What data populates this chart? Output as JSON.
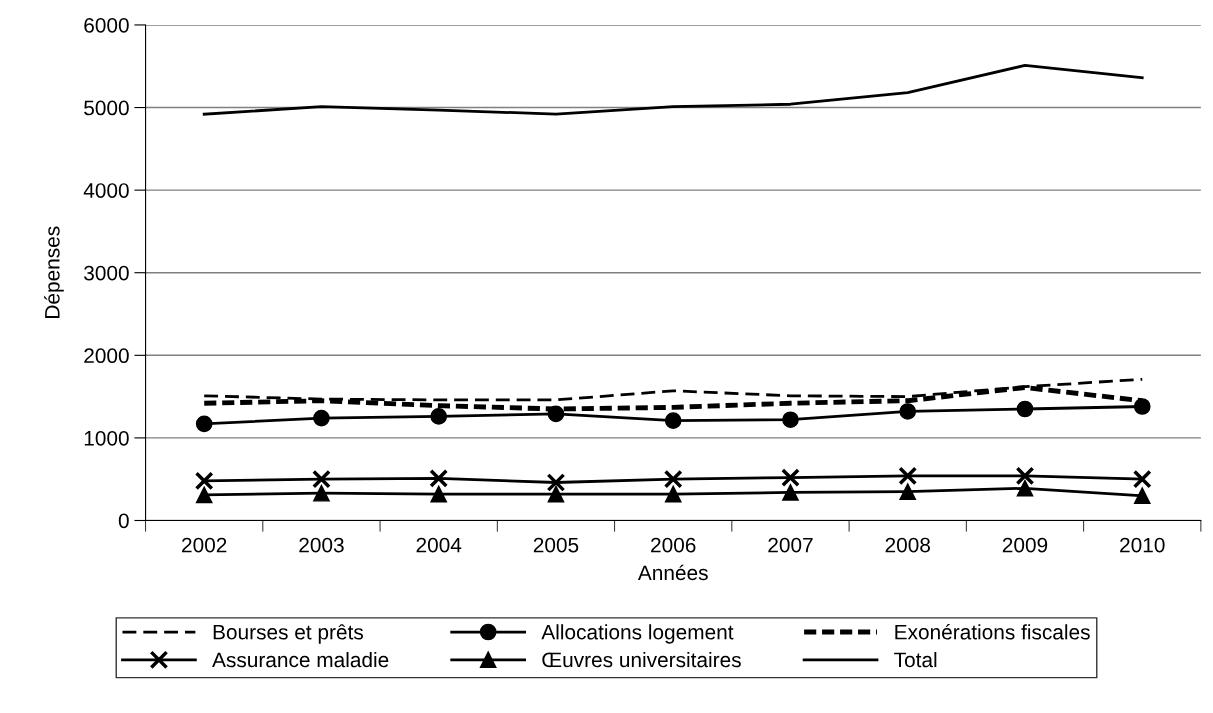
{
  "chart_data": {
    "type": "line",
    "xlabel": "Années",
    "ylabel": "Dépenses",
    "categories": [
      "2002",
      "2003",
      "2004",
      "2005",
      "2006",
      "2007",
      "2008",
      "2009",
      "2010"
    ],
    "ylim": [
      0,
      6000
    ],
    "yticks": [
      0,
      1000,
      2000,
      3000,
      4000,
      5000,
      6000
    ],
    "grid": "y",
    "legend": "bottom",
    "series": [
      {
        "name": "Bourses et prêts",
        "color": "#000000",
        "line_style": "dashed",
        "marker": "none",
        "values": [
          1510,
          1470,
          1460,
          1460,
          1570,
          1510,
          1500,
          1620,
          1710
        ]
      },
      {
        "name": "Allocations logement",
        "color": "#000000",
        "line_style": "solid",
        "marker": "circle",
        "values": [
          1170,
          1240,
          1260,
          1290,
          1210,
          1220,
          1320,
          1350,
          1380
        ]
      },
      {
        "name": "Exonérations fiscales",
        "color": "#000000",
        "line_style": "dashed",
        "marker": "none",
        "values": [
          1420,
          1450,
          1390,
          1350,
          1370,
          1420,
          1450,
          1610,
          1450
        ]
      },
      {
        "name": "Assurance maladie",
        "color": "#000000",
        "line_style": "solid",
        "marker": "cross",
        "values": [
          480,
          500,
          510,
          460,
          500,
          520,
          540,
          540,
          500
        ]
      },
      {
        "name": "Œuvres universitaires",
        "color": "#000000",
        "line_style": "solid",
        "marker": "triangle",
        "values": [
          310,
          330,
          320,
          320,
          320,
          340,
          350,
          390,
          300
        ]
      },
      {
        "name": "Total",
        "color": "#000000",
        "line_style": "solid",
        "marker": "none",
        "values": [
          4920,
          5010,
          4970,
          4920,
          5010,
          5040,
          5180,
          5510,
          5360
        ]
      }
    ]
  }
}
